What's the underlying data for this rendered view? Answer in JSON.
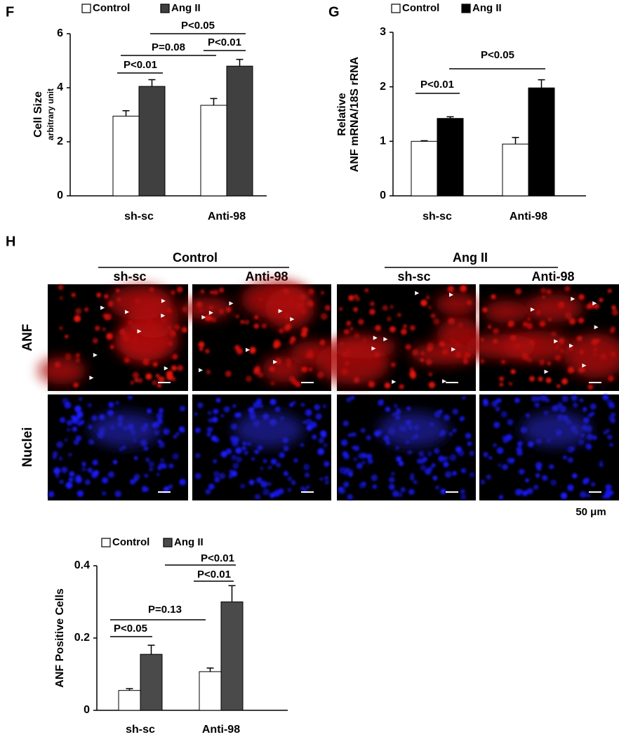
{
  "chart_data": [
    {
      "type": "bar",
      "panel": "F",
      "ylabel": "Cell Size",
      "ylabel_sub": "arbitrary unit",
      "categories": [
        "sh-sc",
        "Anti-98"
      ],
      "series": [
        {
          "name": "Control",
          "color": "#ffffff",
          "values": [
            2.95,
            3.35
          ],
          "errors": [
            0.2,
            0.25
          ]
        },
        {
          "name": "Ang II",
          "color": "#404040",
          "values": [
            4.05,
            4.8
          ],
          "errors": [
            0.25,
            0.25
          ]
        }
      ],
      "ylim": [
        0,
        6
      ],
      "yticks": [
        0,
        2,
        4,
        6
      ],
      "grid": false,
      "annotations": [
        "P<0.01",
        "P=0.08",
        "P<0.01",
        "P<0.05"
      ]
    },
    {
      "type": "bar",
      "panel": "G",
      "ylabel": "Relative",
      "ylabel_sub": "ANF mRNA/18S rRNA",
      "categories": [
        "sh-sc",
        "Anti-98"
      ],
      "series": [
        {
          "name": "Control",
          "color": "#ffffff",
          "values": [
            1.0,
            0.95
          ],
          "errors": [
            0.01,
            0.12
          ]
        },
        {
          "name": "Ang II",
          "color": "#000000",
          "values": [
            1.42,
            1.98
          ],
          "errors": [
            0.03,
            0.15
          ]
        }
      ],
      "ylim": [
        0,
        3
      ],
      "yticks": [
        0,
        1,
        2,
        3
      ],
      "grid": false,
      "annotations": [
        "P<0.01",
        "P<0.05"
      ]
    },
    {
      "type": "bar",
      "ylabel": "ANF Positive Cells",
      "categories": [
        "sh-sc",
        "Anti-98"
      ],
      "series": [
        {
          "name": "Control",
          "color": "#ffffff",
          "values": [
            0.055,
            0.107
          ],
          "errors": [
            0.005,
            0.01
          ]
        },
        {
          "name": "Ang II",
          "color": "#4a4a4a",
          "values": [
            0.155,
            0.3
          ],
          "errors": [
            0.025,
            0.045
          ]
        }
      ],
      "ylim": [
        0,
        0.4
      ],
      "yticks": [
        0,
        0.2,
        0.4
      ],
      "grid": false,
      "annotations": [
        "P<0.05",
        "P=0.13",
        "P<0.01",
        "P<0.01"
      ]
    }
  ],
  "panel_h": {
    "label": "H",
    "groups": [
      "Control",
      "Ang II"
    ],
    "columns": [
      "sh-sc",
      "Anti-98",
      "sh-sc",
      "Anti-98"
    ],
    "rows": [
      "ANF",
      "Nuclei"
    ],
    "scale": "50 μm"
  }
}
